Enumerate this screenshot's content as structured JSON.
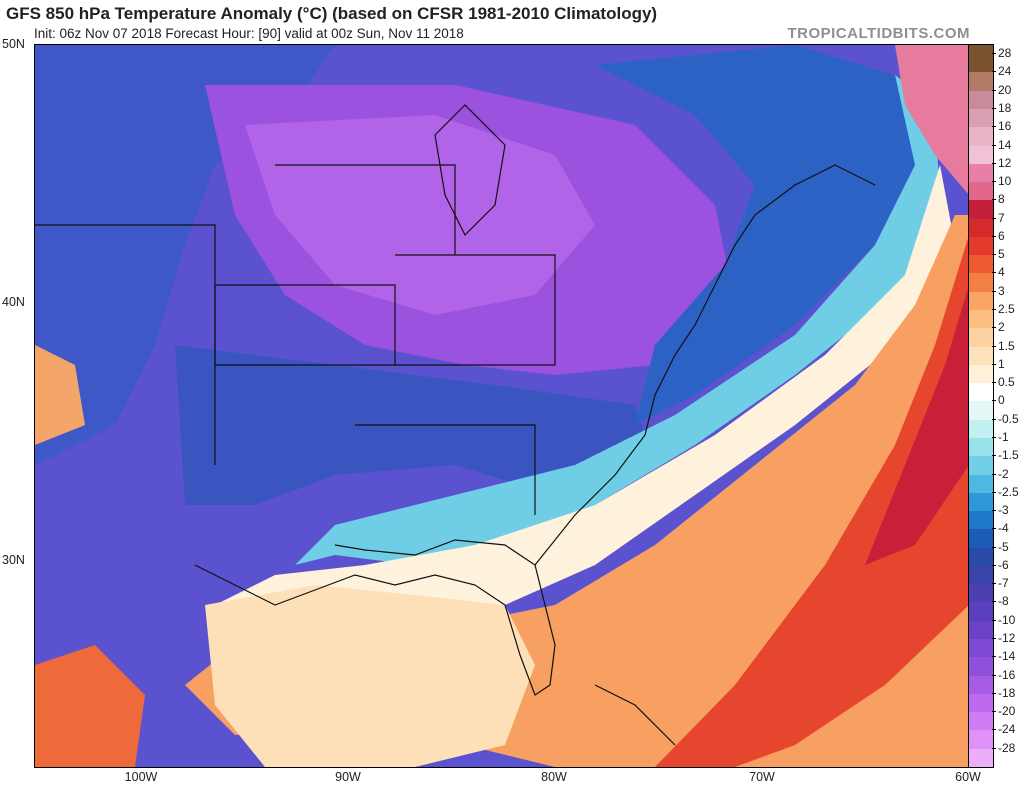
{
  "header": {
    "title": "GFS 850 hPa Temperature Anomaly (°C) (based on CFSR 1981-2010 Climatology)",
    "subtitle": "Init: 06z Nov 07 2018   Forecast Hour: [90]   valid at 00z Sun, Nov 11 2018",
    "brand": "TROPICALTIDBITS.COM"
  },
  "map": {
    "latitude_labels": [
      "50N",
      "40N",
      "30N"
    ],
    "longitude_labels": [
      "100W",
      "90W",
      "80W",
      "70W",
      "60W"
    ]
  },
  "legend": {
    "levels": [
      "28",
      "24",
      "20",
      "18",
      "16",
      "14",
      "12",
      "10",
      "8",
      "7",
      "6",
      "5",
      "4",
      "3",
      "2.5",
      "2",
      "1.5",
      "1",
      "0.5",
      "0",
      "-0.5",
      "-1",
      "-1.5",
      "-2",
      "-2.5",
      "-3",
      "-4",
      "-5",
      "-6",
      "-7",
      "-8",
      "-10",
      "-12",
      "-14",
      "-16",
      "-18",
      "-20",
      "-24",
      "-28"
    ],
    "colors": [
      "#7a5230",
      "#b07a66",
      "#c98a9c",
      "#d99fb2",
      "#e7b4c8",
      "#efc2d6",
      "#e77fa8",
      "#e0668a",
      "#c2203a",
      "#d52a2a",
      "#e5392b",
      "#ee5a32",
      "#f47f45",
      "#f8a566",
      "#fbbf82",
      "#fcd39f",
      "#fde3bc",
      "#fff1d8",
      "#ffffff",
      "#e3f7f7",
      "#c2efef",
      "#98e2ea",
      "#72cfe6",
      "#4db8e2",
      "#2f98d8",
      "#1e77c8",
      "#1c5bb6",
      "#2a4aa8",
      "#3a43a8",
      "#4b40b0",
      "#5b3fbb",
      "#6b42c6",
      "#7d48d2",
      "#9150dc",
      "#a85ce6",
      "#bd6aee",
      "#d07cf2",
      "#e092f6",
      "#ecaef9"
    ]
  }
}
